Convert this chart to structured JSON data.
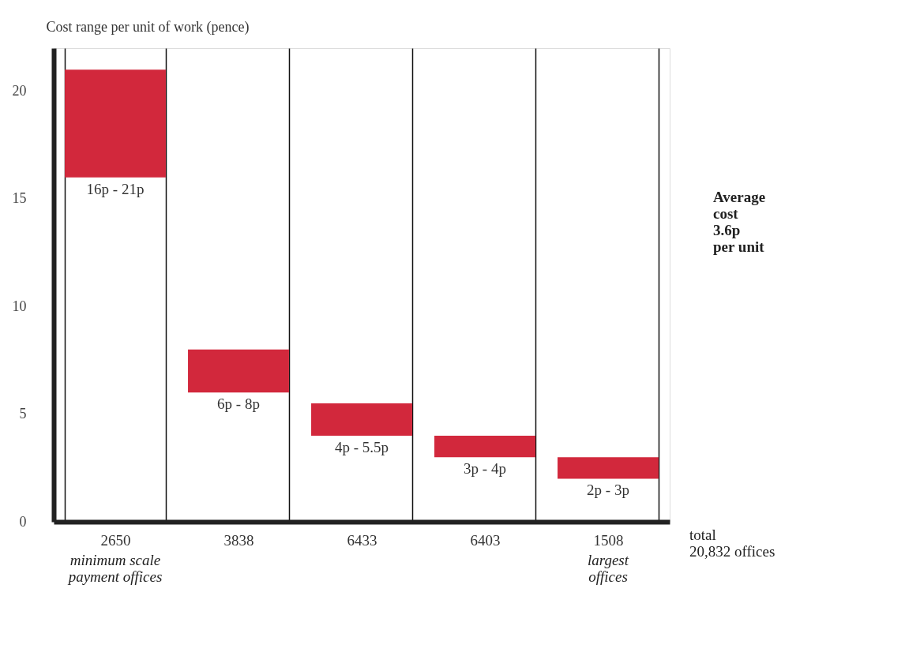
{
  "chart_data": {
    "type": "bar",
    "ylabel": "Cost range per unit of work (pence)",
    "categories": [
      "2650",
      "3838",
      "6433",
      "6403",
      "1508"
    ],
    "base": [
      16,
      6,
      4,
      3,
      2
    ],
    "values": [
      5,
      2,
      1.5,
      1,
      1
    ],
    "color": "#d2283c",
    "ylim": [
      0,
      22
    ],
    "yticks": [
      0,
      5,
      10,
      15,
      20
    ],
    "grid": "x",
    "annotations": [
      {
        "text": "16p - 21p",
        "x": "2650",
        "y": 16
      },
      {
        "text": "6p - 8p",
        "x": "3838",
        "y": 6
      },
      {
        "text": "4p - 5.5p",
        "x": "6433",
        "y": 4
      },
      {
        "text": "3p - 4p",
        "x": "6403",
        "y": 3
      },
      {
        "text": "2p - 3p",
        "x": "1508",
        "y": 2
      },
      "minimum scale\npayment offices",
      "largest\noffices",
      "Average\ncost\n3.6p\nper unit",
      "total\n20,832 offices"
    ]
  }
}
